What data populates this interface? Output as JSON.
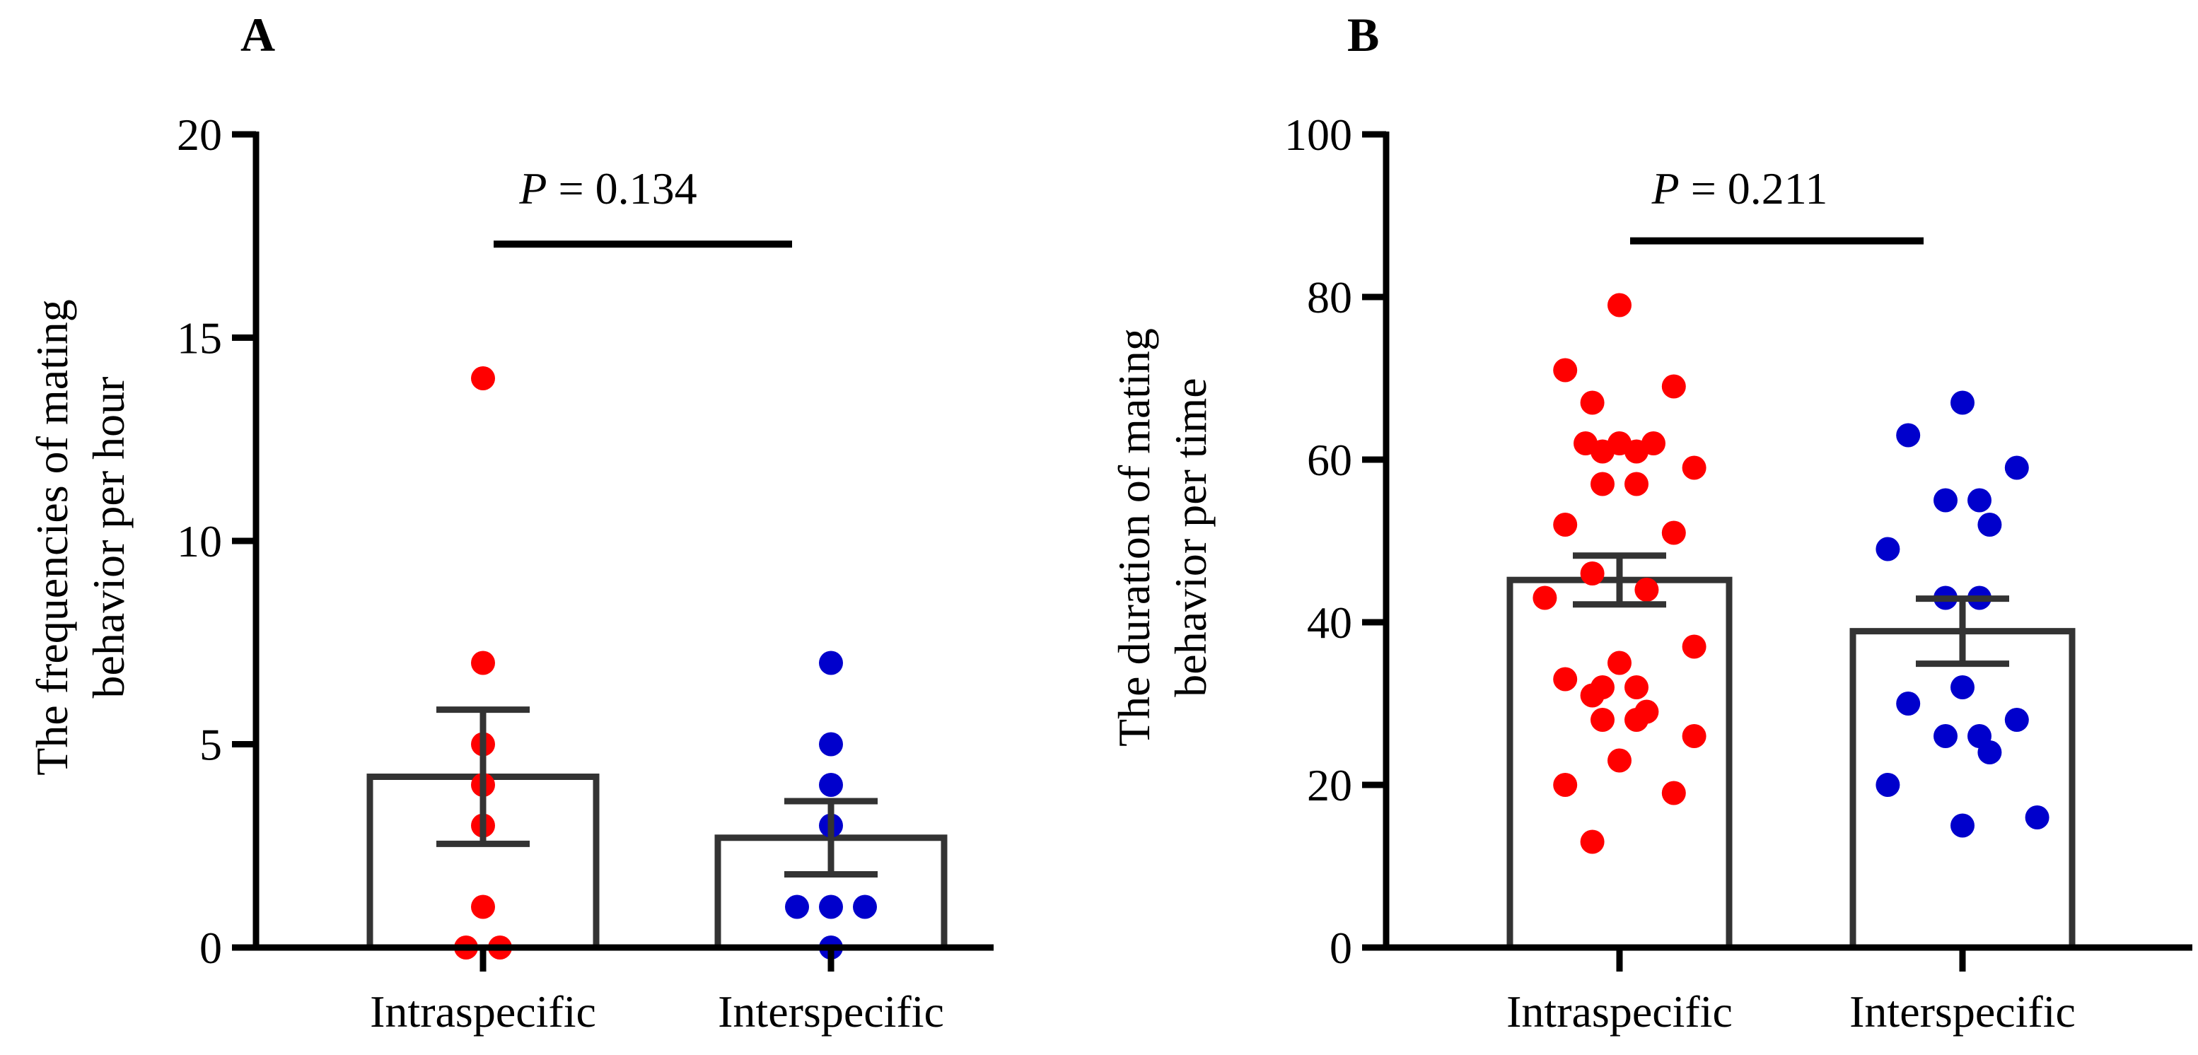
{
  "colors": {
    "intraspecific_points": "#ff0000",
    "interspecific_points": "#0000cc",
    "bars_and_axes": "#000000",
    "bar_fill": "#ffffff"
  },
  "chart_data": [
    {
      "type": "bar",
      "panel_label": "A",
      "categories": [
        "Intraspecific",
        "Interspecific"
      ],
      "values": [
        4.2,
        2.7
      ],
      "error_sem": [
        1.65,
        0.9
      ],
      "ylabel_lines": [
        "The frequencies of mating",
        "behavior per hour"
      ],
      "ylim": [
        0,
        20
      ],
      "yticks": [
        "0",
        "5",
        "10",
        "15",
        "20"
      ],
      "points": [
        [
          0,
          0,
          1,
          3,
          4,
          5,
          7,
          14
        ],
        [
          0,
          1,
          1,
          1,
          3,
          4,
          5,
          7
        ]
      ],
      "significance": {
        "p_symbol": "P",
        "p_text": " = 0.134",
        "bar_y": 17.3
      },
      "grid": false,
      "legend": "none"
    },
    {
      "type": "bar",
      "panel_label": "B",
      "categories": [
        "Intraspecific",
        "Interspecific"
      ],
      "values": [
        45.2,
        38.9
      ],
      "error_sem": [
        3.0,
        4.0
      ],
      "ylabel_lines": [
        "The duration of mating",
        "behavior per time"
      ],
      "ylim": [
        0,
        100
      ],
      "yticks": [
        "0",
        "20",
        "40",
        "60",
        "80",
        "100"
      ],
      "points": [
        [
          79,
          71,
          69,
          67,
          62,
          62,
          62,
          61,
          61,
          59,
          57,
          57,
          52,
          51,
          46,
          44,
          43,
          37,
          35,
          33,
          32,
          32,
          31,
          29,
          28,
          28,
          26,
          23,
          20,
          19,
          13
        ],
        [
          67,
          63,
          59,
          55,
          55,
          52,
          49,
          43,
          43,
          32,
          30,
          28,
          26,
          26,
          24,
          20,
          16,
          15
        ]
      ],
      "significance": {
        "p_symbol": "P",
        "p_text": " = 0.211",
        "bar_y": 86.9
      },
      "grid": false,
      "legend": "none"
    }
  ]
}
